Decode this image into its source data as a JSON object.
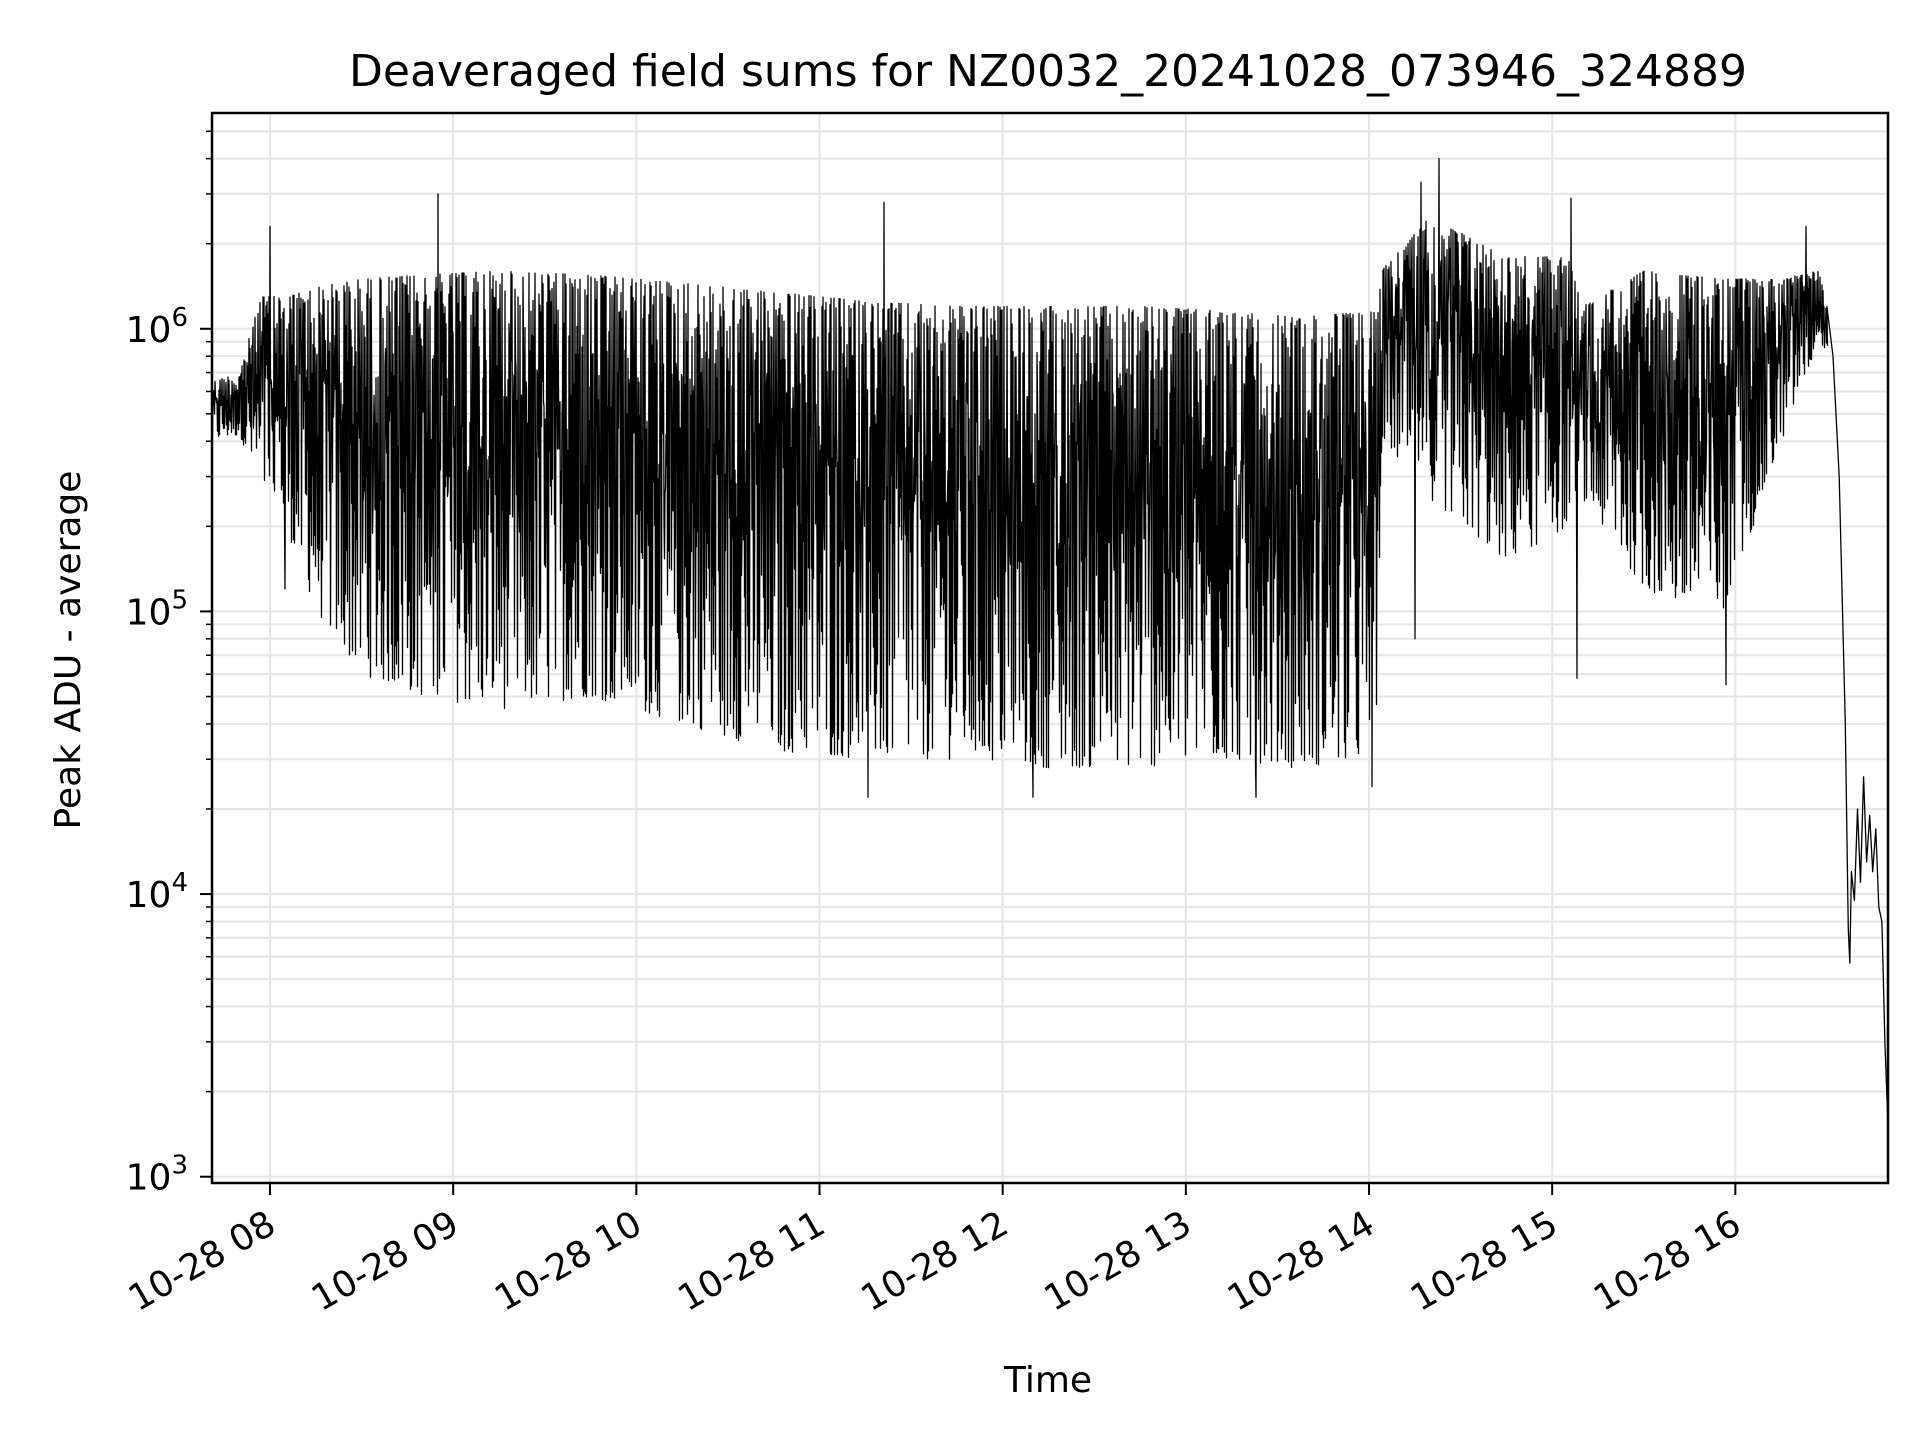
{
  "chart_data": {
    "type": "line",
    "title": "Deaveraged field sums for NZ0032_20241028_073946_324889",
    "xlabel": "Time",
    "ylabel": "Peak ADU - average",
    "yscale": "log",
    "ylim": [
      950,
      5800000
    ],
    "xlim": [
      "2024-10-28T07:41",
      "2024-10-28T16:50"
    ],
    "x_ticks": [
      {
        "at": "2024-10-28T08:00",
        "label": "10-28 08"
      },
      {
        "at": "2024-10-28T09:00",
        "label": "10-28 09"
      },
      {
        "at": "2024-10-28T10:00",
        "label": "10-28 10"
      },
      {
        "at": "2024-10-28T11:00",
        "label": "10-28 11"
      },
      {
        "at": "2024-10-28T12:00",
        "label": "10-28 12"
      },
      {
        "at": "2024-10-28T13:00",
        "label": "10-28 13"
      },
      {
        "at": "2024-10-28T14:00",
        "label": "10-28 14"
      },
      {
        "at": "2024-10-28T15:00",
        "label": "10-28 15"
      },
      {
        "at": "2024-10-28T16:00",
        "label": "10-28 16"
      }
    ],
    "y_ticks": [
      {
        "value": 1000,
        "base": "10",
        "exp": "3"
      },
      {
        "value": 10000,
        "base": "10",
        "exp": "4"
      },
      {
        "value": 100000,
        "base": "10",
        "exp": "5"
      },
      {
        "value": 1000000,
        "base": "10",
        "exp": "6"
      }
    ],
    "grid": true,
    "line_color": "#000000",
    "grid_color": "#e6e6e6",
    "series": [
      {
        "envelope": [
          {
            "t": "2024-10-28T07:41",
            "low": 400000,
            "high": 650000
          },
          {
            "t": "2024-10-28T07:50",
            "low": 420000,
            "high": 700000
          },
          {
            "t": "2024-10-28T07:57",
            "low": 260000,
            "high": 1300000
          },
          {
            "t": "2024-10-28T08:05",
            "low": 200000,
            "high": 1300000
          },
          {
            "t": "2024-10-28T08:15",
            "low": 100000,
            "high": 1400000
          },
          {
            "t": "2024-10-28T08:30",
            "low": 60000,
            "high": 1500000
          },
          {
            "t": "2024-10-28T08:50",
            "low": 50000,
            "high": 1550000
          },
          {
            "t": "2024-10-28T09:15",
            "low": 45000,
            "high": 1600000
          },
          {
            "t": "2024-10-28T09:45",
            "low": 50000,
            "high": 1550000
          },
          {
            "t": "2024-10-28T10:15",
            "low": 40000,
            "high": 1450000
          },
          {
            "t": "2024-10-28T10:45",
            "low": 32000,
            "high": 1350000
          },
          {
            "t": "2024-10-28T11:15",
            "low": 30000,
            "high": 1250000
          },
          {
            "t": "2024-10-28T11:45",
            "low": 30000,
            "high": 1200000
          },
          {
            "t": "2024-10-28T12:15",
            "low": 28000,
            "high": 1200000
          },
          {
            "t": "2024-10-28T12:45",
            "low": 28000,
            "high": 1200000
          },
          {
            "t": "2024-10-28T13:15",
            "low": 30000,
            "high": 1150000
          },
          {
            "t": "2024-10-28T13:35",
            "low": 28000,
            "high": 1100000
          },
          {
            "t": "2024-10-28T14:02",
            "low": 30000,
            "high": 1150000
          },
          {
            "t": "2024-10-28T14:04",
            "low": 400000,
            "high": 1600000
          },
          {
            "t": "2024-10-28T14:20",
            "low": 250000,
            "high": 2500000
          },
          {
            "t": "2024-10-28T14:45",
            "low": 150000,
            "high": 1800000
          },
          {
            "t": "2024-10-28T15:05",
            "low": 200000,
            "high": 1800000
          },
          {
            "t": "2024-10-28T15:10",
            "low": 250000,
            "high": 1200000
          },
          {
            "t": "2024-10-28T15:30",
            "low": 120000,
            "high": 1600000
          },
          {
            "t": "2024-10-28T15:55",
            "low": 90000,
            "high": 1500000
          },
          {
            "t": "2024-10-28T16:15",
            "low": 400000,
            "high": 1500000
          },
          {
            "t": "2024-10-28T16:27",
            "low": 900000,
            "high": 1600000
          },
          {
            "t": "2024-10-28T16:30",
            "low": 800000,
            "high": 1300000
          }
        ],
        "spikes": [
          {
            "t": "2024-10-28T08:00",
            "y": 2300000
          },
          {
            "t": "2024-10-28T08:55",
            "y": 3000000
          },
          {
            "t": "2024-10-28T11:21",
            "y": 2800000
          },
          {
            "t": "2024-10-28T14:17",
            "y": 3300000
          },
          {
            "t": "2024-10-28T14:23",
            "y": 4000000
          },
          {
            "t": "2024-10-28T15:06",
            "y": 2900000
          },
          {
            "t": "2024-10-28T16:23",
            "y": 2300000
          },
          {
            "t": "2024-10-28T08:05",
            "y": 120000
          },
          {
            "t": "2024-10-28T11:16",
            "y": 22000
          },
          {
            "t": "2024-10-28T12:10",
            "y": 22000
          },
          {
            "t": "2024-10-28T13:23",
            "y": 22000
          },
          {
            "t": "2024-10-28T14:01",
            "y": 24000
          },
          {
            "t": "2024-10-28T14:15",
            "y": 80000
          },
          {
            "t": "2024-10-28T15:08",
            "y": 58000
          },
          {
            "t": "2024-10-28T15:57",
            "y": 55000
          }
        ],
        "tail": [
          {
            "t": "2024-10-28T16:30",
            "y": 1200000
          },
          {
            "t": "2024-10-28T16:32",
            "y": 800000
          },
          {
            "t": "2024-10-28T16:34",
            "y": 300000
          },
          {
            "t": "2024-10-28T16:36",
            "y": 40000
          },
          {
            "t": "2024-10-28T16:37",
            "y": 7500
          },
          {
            "t": "2024-10-28T16:37:30",
            "y": 5700
          },
          {
            "t": "2024-10-28T16:38",
            "y": 12000
          },
          {
            "t": "2024-10-28T16:39",
            "y": 9500
          },
          {
            "t": "2024-10-28T16:40",
            "y": 20000
          },
          {
            "t": "2024-10-28T16:41",
            "y": 11000
          },
          {
            "t": "2024-10-28T16:42",
            "y": 26000
          },
          {
            "t": "2024-10-28T16:43",
            "y": 13000
          },
          {
            "t": "2024-10-28T16:44",
            "y": 19000
          },
          {
            "t": "2024-10-28T16:45",
            "y": 12000
          },
          {
            "t": "2024-10-28T16:46",
            "y": 17000
          },
          {
            "t": "2024-10-28T16:47",
            "y": 9000
          },
          {
            "t": "2024-10-28T16:48",
            "y": 8000
          },
          {
            "t": "2024-10-28T16:49",
            "y": 3000
          },
          {
            "t": "2024-10-28T16:50",
            "y": 1500
          }
        ]
      }
    ]
  }
}
